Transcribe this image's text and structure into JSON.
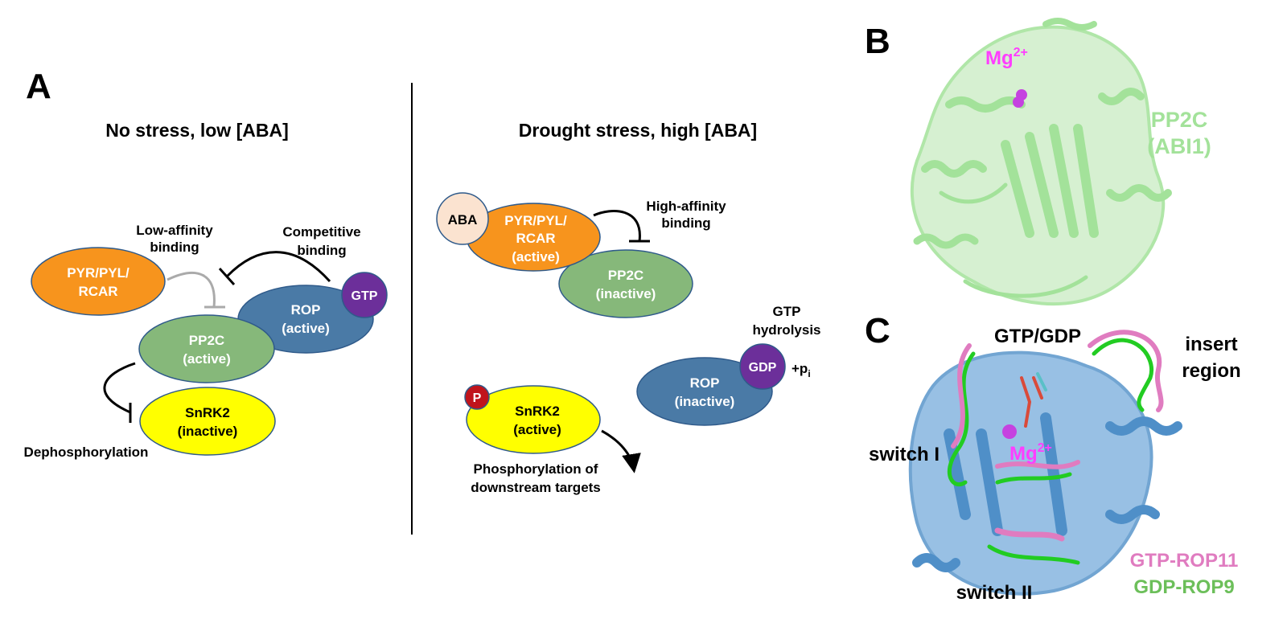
{
  "panel_a": {
    "letter": "A",
    "left": {
      "heading": "No stress, low [ABA]",
      "pyr": [
        "PYR/PYL/",
        "RCAR"
      ],
      "rop": [
        "ROP",
        "(active)"
      ],
      "gtp": "GTP",
      "pp2c": [
        "PP2C",
        "(active)"
      ],
      "snrk2": [
        "SnRK2",
        "(inactive)"
      ],
      "low_affinity": [
        "Low-affinity",
        "binding"
      ],
      "competitive": [
        "Competitive",
        "binding"
      ],
      "dephos": "Dephosphorylation"
    },
    "right": {
      "heading": "Drought stress, high [ABA]",
      "aba": "ABA",
      "pyr": [
        "PYR/PYL/",
        "RCAR",
        "(active)"
      ],
      "pp2c": [
        "PP2C",
        "(inactive)"
      ],
      "high_affinity": [
        "High-affinity",
        "binding"
      ],
      "gtp_hydrolysis": [
        "GTP",
        "hydrolysis"
      ],
      "rop": [
        "ROP",
        "(inactive)"
      ],
      "gdp": "GDP",
      "pi": "+p",
      "pi_sub": "i",
      "p": "P",
      "snrk2": [
        "SnRK2",
        "(active)"
      ],
      "phos": [
        "Phosphorylation of",
        "downstream targets"
      ]
    }
  },
  "panel_b": {
    "letter": "B",
    "mg": "Mg",
    "mg_sup": "2+",
    "protein": [
      "PP2C",
      "(ABI1)"
    ]
  },
  "panel_c": {
    "letter": "C",
    "gtp_gdp": "GTP/GDP",
    "insert": [
      "insert",
      "region"
    ],
    "switch1": "switch I",
    "switch2": "switch II",
    "mg": "Mg",
    "mg_sup": "2+",
    "legend": [
      {
        "label": "GTP-ROP11",
        "color": "#e07cc0"
      },
      {
        "label": "GDP-ROP9",
        "color": "#6cbf5a"
      }
    ]
  },
  "colors": {
    "orange": "#f7941d",
    "blue": "#4a7aa6",
    "green_node": "#86b87a",
    "yellow": "#ffff00",
    "purple": "#6c2f9a",
    "peach": "#fbe3d0",
    "red_p": "#c0141c",
    "magenta": "#ff3dff",
    "light_green": "#a3e29a",
    "pink": "#e07cc0",
    "green_loop": "#22cc22",
    "steel": "#4f8fc8"
  }
}
